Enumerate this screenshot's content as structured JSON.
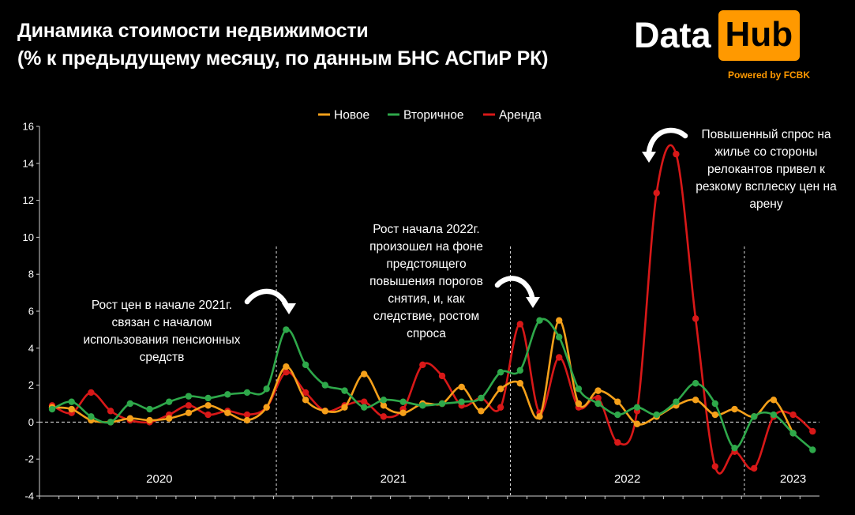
{
  "title_line1": "Динамика стоимости недвижимости",
  "title_line2": "(% к предыдущему месяцу, по данным БНС АСПиР РК)",
  "logo": {
    "word1": "Data",
    "word2": "Hub",
    "tagline": "Powered by FCBK"
  },
  "colors": {
    "Новое": "#f5a01a",
    "Вторичное": "#2ea84a",
    "Аренда": "#d81818"
  },
  "annotations": [
    {
      "id": "ann-2021",
      "lines": [
        "Рост цен в начале 2021г.",
        "связан с началом",
        "использования пенсионных",
        "средств"
      ]
    },
    {
      "id": "ann-2022",
      "lines": [
        "Рост начала 2022г.",
        "произошел на фоне",
        "предстоящего",
        "повышения порогов",
        "снятия, и, как",
        "следствие, ростом",
        "спроса"
      ]
    },
    {
      "id": "ann-relocants",
      "lines": [
        "Повышенный спрос на",
        "жилье со стороны",
        "релокантов привел к",
        "резкому всплеску цен на",
        "арену"
      ]
    }
  ],
  "chart_data": {
    "type": "line",
    "title": "",
    "xlabel": "",
    "ylabel": "",
    "ylim": [
      -4,
      16
    ],
    "yticks": [
      -4,
      -2,
      0,
      2,
      4,
      6,
      8,
      10,
      12,
      14,
      16
    ],
    "zero_line": "dashed",
    "legend_position": "top-center",
    "year_labels": [
      "2020",
      "2021",
      "2022",
      "2023"
    ],
    "year_month_counts": [
      12,
      12,
      12,
      5
    ],
    "series": [
      {
        "name": "Новое",
        "values": [
          0.8,
          0.7,
          0.1,
          0.0,
          0.2,
          0.1,
          0.2,
          0.5,
          0.9,
          0.5,
          0.1,
          0.8,
          3.0,
          1.2,
          0.6,
          0.8,
          2.6,
          0.9,
          0.5,
          1.0,
          1.0,
          1.9,
          0.6,
          1.8,
          2.1,
          0.3,
          5.5,
          1.0,
          1.7,
          1.1,
          -0.1,
          0.3,
          0.9,
          1.2,
          0.4,
          0.7,
          0.3,
          1.2,
          -0.6
        ]
      },
      {
        "name": "Вторичное",
        "values": [
          0.7,
          1.1,
          0.3,
          0.0,
          1.0,
          0.7,
          1.1,
          1.4,
          1.3,
          1.5,
          1.6,
          1.8,
          5.0,
          3.1,
          2.0,
          1.7,
          0.8,
          1.2,
          1.1,
          0.9,
          1.0,
          1.1,
          1.3,
          2.7,
          2.8,
          5.5,
          4.6,
          1.8,
          1.0,
          0.4,
          0.8,
          0.4,
          1.1,
          2.1,
          1.0,
          -1.4,
          0.3,
          0.4,
          -0.6,
          -1.5
        ]
      },
      {
        "name": "Аренда",
        "values": [
          0.9,
          0.5,
          1.6,
          0.6,
          0.1,
          0.0,
          0.4,
          0.9,
          0.4,
          0.6,
          0.4,
          0.8,
          2.7,
          1.6,
          0.6,
          0.9,
          1.1,
          0.3,
          0.7,
          3.1,
          2.5,
          0.9,
          1.3,
          0.8,
          5.3,
          0.5,
          3.5,
          0.8,
          1.3,
          -1.1,
          0.6,
          12.4,
          14.5,
          5.6,
          -2.4,
          -1.6,
          -2.5,
          0.3,
          0.4,
          -0.5
        ]
      }
    ]
  }
}
